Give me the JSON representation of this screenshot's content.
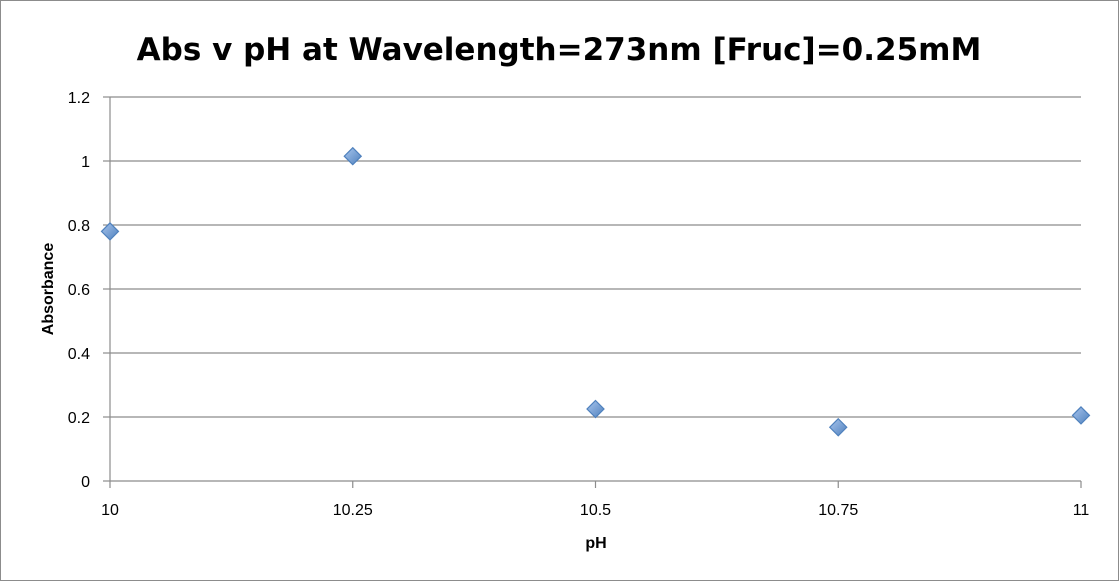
{
  "chart_data": {
    "type": "scatter",
    "title": "Abs v pH at Wavelength=273nm [Fruc]=0.25mM",
    "xlabel": "pH",
    "ylabel": "Absorbance",
    "x_ticks": [
      "10",
      "10.25",
      "10.5",
      "10.75",
      "11"
    ],
    "y_ticks": [
      "0",
      "0.2",
      "0.4",
      "0.6",
      "0.8",
      "1",
      "1.2"
    ],
    "xlim": [
      10,
      11
    ],
    "ylim": [
      0,
      1.2
    ],
    "grid": "horizontal",
    "legend": "none",
    "marker": "diamond",
    "marker_color": "#4F81BD",
    "series": [
      {
        "x": [
          10,
          10.25,
          10.5,
          10.75,
          11
        ],
        "y": [
          0.78,
          1.015,
          0.225,
          0.168,
          0.205
        ]
      }
    ]
  }
}
